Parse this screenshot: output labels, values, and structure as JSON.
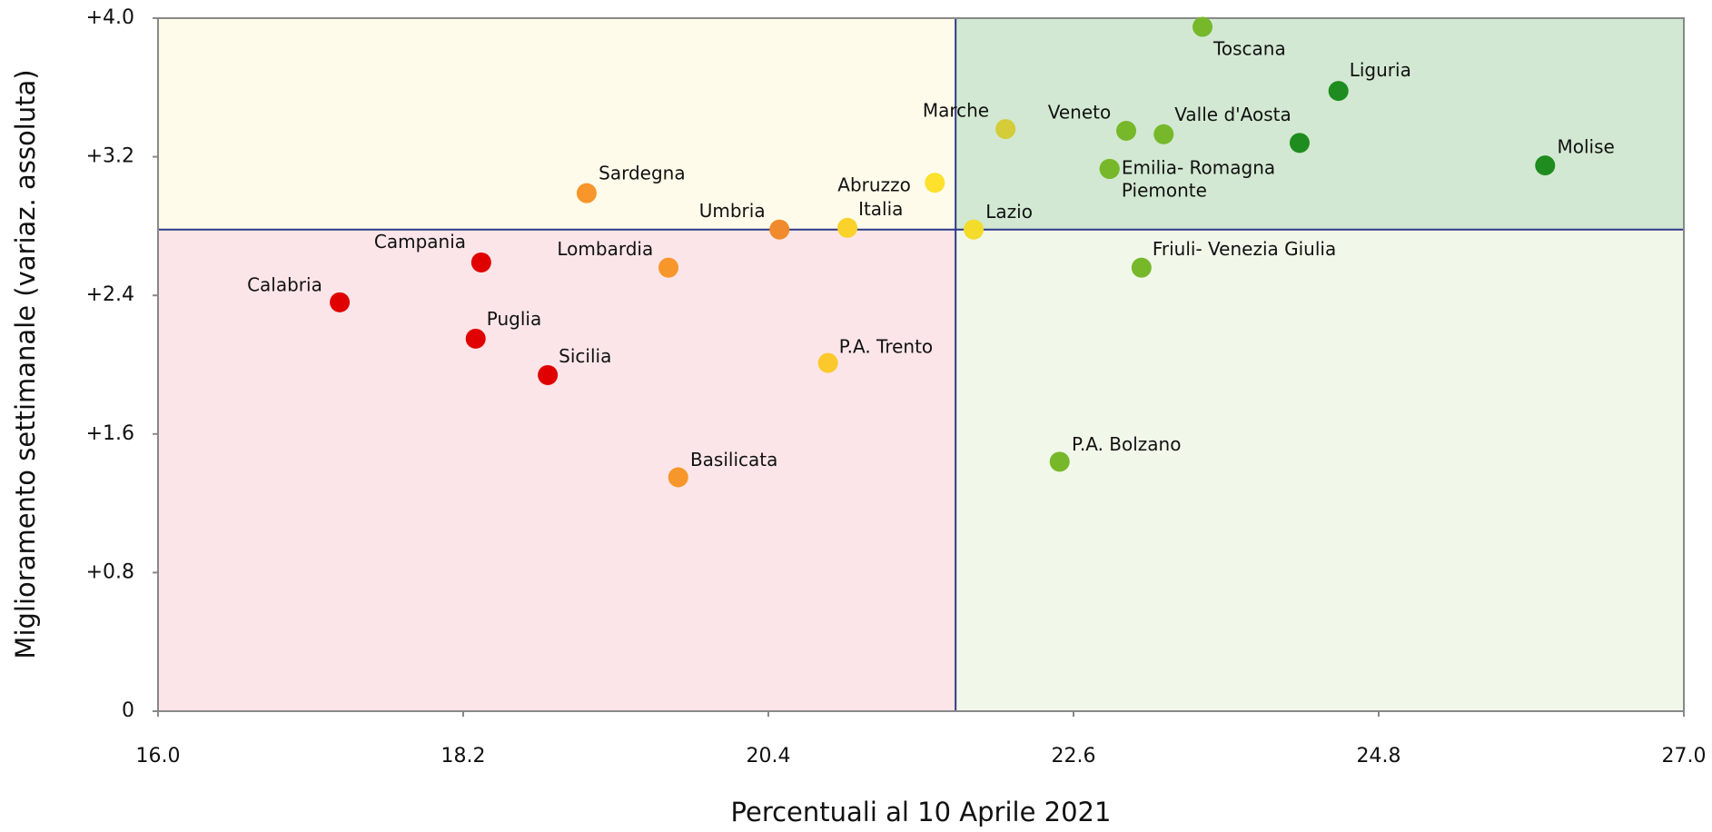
{
  "chart_data": {
    "type": "scatter",
    "xlabel": "Percentuali al 10 Aprile 2021",
    "ylabel": "Miglioramento settimanale (variaz. assoluta)",
    "labels": [
      "Toscana",
      "Liguria",
      "Marche",
      "Veneto",
      "Valle d'Aosta",
      null,
      "Molise",
      "Emilia- Romagna",
      "Piemonte",
      "Abruzzo",
      "Sardegna",
      "Italia",
      "Lazio",
      "Umbria",
      "Campania",
      "Lombardia",
      "Friuli- Venezia Giulia",
      "Calabria",
      "Puglia",
      "Sicilia",
      "P.A. Trento",
      "P.A. Bolzano",
      "Basilicata"
    ],
    "x": [
      23.53,
      24.51,
      22.11,
      22.98,
      23.25,
      24.23,
      26.0,
      22.86,
      22.86,
      21.6,
      19.09,
      20.97,
      21.88,
      20.48,
      18.33,
      19.68,
      23.09,
      17.31,
      18.29,
      18.81,
      20.83,
      22.5,
      19.75
    ],
    "values": [
      3.95,
      3.58,
      3.36,
      3.35,
      3.33,
      3.28,
      3.15,
      3.13,
      3.13,
      3.05,
      2.99,
      2.79,
      2.78,
      2.78,
      2.59,
      2.56,
      2.56,
      2.36,
      2.15,
      1.94,
      2.01,
      1.44,
      1.35
    ],
    "colors": [
      "#76b82a",
      "#1e8c1e",
      "#d4cc38",
      "#76b82a",
      "#76b82a",
      "#1e8c1e",
      "#1e8c1e",
      "#76b82a",
      "#76b82a",
      "#fde12d",
      "#f7962b",
      "#fbd22c",
      "#f3dc2a",
      "#f08a2c",
      "#e00000",
      "#f7962b",
      "#76b82a",
      "#e00000",
      "#e00000",
      "#e00000",
      "#fbc92c",
      "#76b82a",
      "#f7962b"
    ],
    "xline": 21.75,
    "yline": 2.78,
    "quadrant_colors": {
      "top_left": "#fefbea",
      "top_right": "#d2e8d2",
      "bottom_left": "#fbe5e8",
      "bottom_right": "#f1f7e9"
    },
    "line_color": "#2e3a87",
    "xlim": [
      16,
      27
    ],
    "xticks": [
      {
        "value": 16,
        "label": "16.0"
      },
      18.2,
      20.4,
      22.6,
      24.8,
      {
        "value": 27,
        "label": "27.0"
      }
    ],
    "ylim": [
      0,
      4
    ],
    "yticks": [
      0,
      {
        "value": 0.8,
        "label": "+0.8"
      },
      {
        "value": 1.6,
        "label": "+1.6"
      },
      {
        "value": 2.4,
        "label": "+2.4"
      },
      {
        "value": 3.2,
        "label": "+3.2"
      },
      {
        "value": 4,
        "label": "+4.0"
      }
    ]
  }
}
